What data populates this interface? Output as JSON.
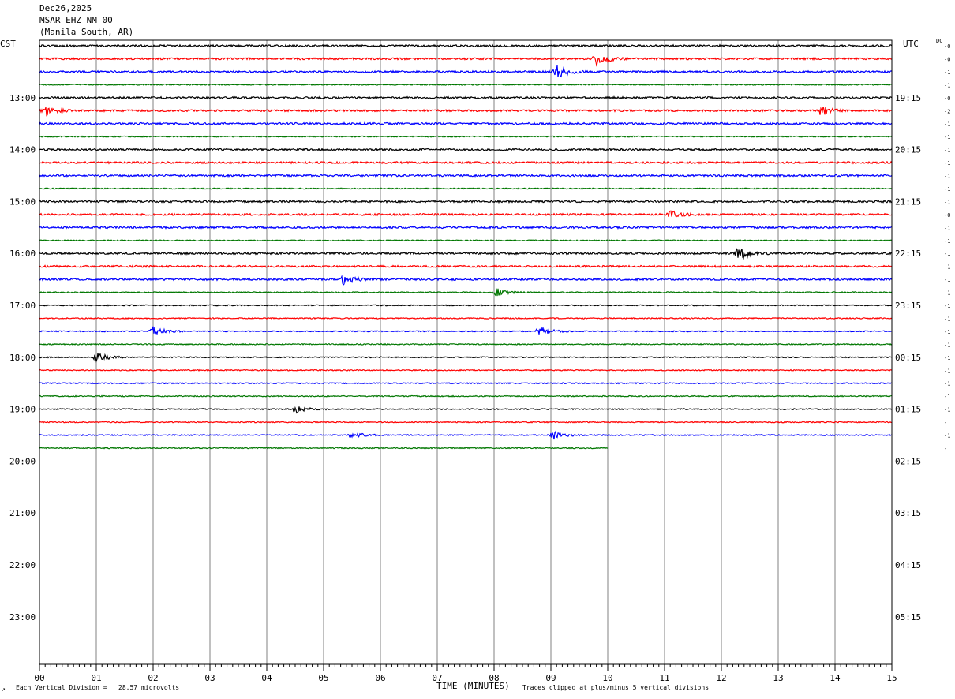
{
  "header": {
    "date": "Dec26,2025",
    "station": "MSAR EHZ NM 00",
    "location": "(Manila South, AR)"
  },
  "left_tz": "CST",
  "right_tz": "UTC",
  "dc_label": "DC",
  "footer": {
    "corner_mark": "↗",
    "vertical_division": "Each Vertical Division =   28.57 microvolts",
    "clip_note": "Traces clipped at plus/minus 5 vertical divisions"
  },
  "chart_data": {
    "type": "line",
    "xlabel": "TIME (MINUTES)",
    "xlim": [
      0,
      15
    ],
    "x_ticks": [
      "00",
      "01",
      "02",
      "03",
      "04",
      "05",
      "06",
      "07",
      "08",
      "09",
      "10",
      "11",
      "12",
      "13",
      "14",
      "15"
    ],
    "left_hour_labels": [
      "13:00",
      "14:00",
      "15:00",
      "16:00",
      "17:00",
      "18:00",
      "19:00",
      "20:00",
      "21:00",
      "22:00",
      "23:00"
    ],
    "right_hour_labels": [
      "19:15",
      "20:15",
      "21:15",
      "22:15",
      "23:15",
      "00:15",
      "01:15",
      "02:15",
      "03:15",
      "04:15",
      "05:15"
    ],
    "trace_colors": [
      "#000000",
      "#ff0000",
      "#0000ff",
      "#007700"
    ],
    "dc_offsets": [
      "-0",
      "-0",
      "-1",
      "-1",
      "-0",
      "-2",
      "-1",
      "-1",
      "-1",
      "-1",
      "-1",
      "-1",
      "-1",
      "-0",
      "-1",
      "-1",
      "-1",
      "-1",
      "-1",
      "-1",
      "-1",
      "-1",
      "-1",
      "-1",
      "-1",
      "-1",
      "-1",
      "-1",
      "-1",
      "-1",
      "-1",
      "-1"
    ],
    "trace_count": 32,
    "last_trace_end_minute": 10,
    "events": [
      {
        "trace": 1,
        "minute": 9.8,
        "amplitude": 9
      },
      {
        "trace": 2,
        "minute": 9.1,
        "amplitude": 9
      },
      {
        "trace": 5,
        "minute": 0.1,
        "amplitude": 6
      },
      {
        "trace": 5,
        "minute": 13.75,
        "amplitude": 6
      },
      {
        "trace": 13,
        "minute": 11.1,
        "amplitude": 5
      },
      {
        "trace": 16,
        "minute": 12.3,
        "amplitude": 9
      },
      {
        "trace": 18,
        "minute": 5.35,
        "amplitude": 6
      },
      {
        "trace": 19,
        "minute": 8.05,
        "amplitude": 5
      },
      {
        "trace": 22,
        "minute": 2.0,
        "amplitude": 6
      },
      {
        "trace": 22,
        "minute": 8.8,
        "amplitude": 6
      },
      {
        "trace": 24,
        "minute": 1.0,
        "amplitude": 6
      },
      {
        "trace": 28,
        "minute": 4.5,
        "amplitude": 5
      },
      {
        "trace": 30,
        "minute": 5.5,
        "amplitude": 4
      },
      {
        "trace": 30,
        "minute": 9.05,
        "amplitude": 5
      }
    ]
  }
}
